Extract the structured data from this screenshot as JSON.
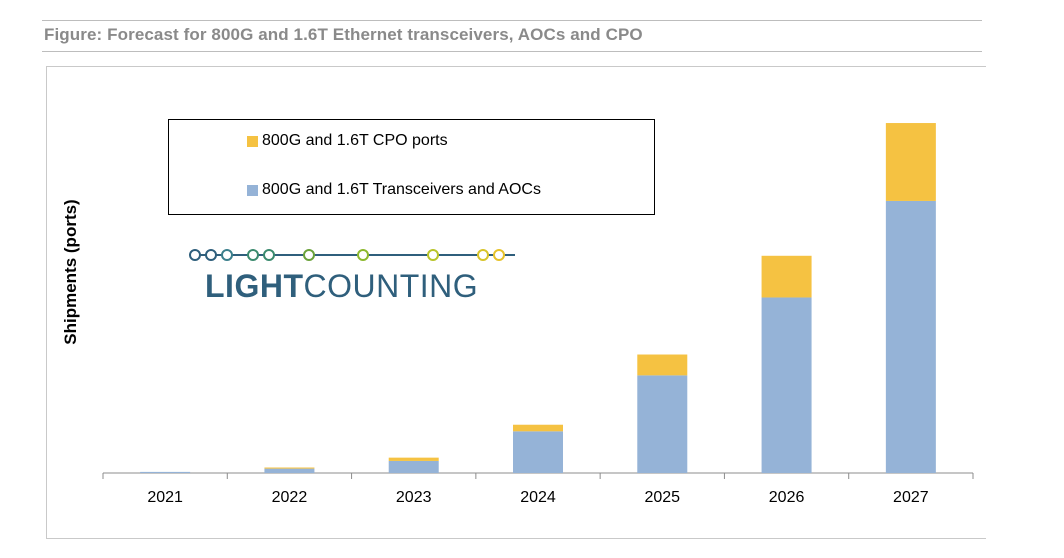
{
  "figure_title": "Figure: Forecast for 800G and 1.6T Ethernet transceivers, AOCs and CPO",
  "logo": {
    "text_bold": "LIGHT",
    "text_regular": "COUNTING"
  },
  "colors": {
    "transceivers": "#95b3d7",
    "cpo": "#f5c242",
    "logo_text": "#2f5f7c"
  },
  "chart_data": {
    "type": "bar",
    "stacked": true,
    "title": "",
    "xlabel": "",
    "ylabel": "Shipments (ports)",
    "categories": [
      "2021",
      "2022",
      "2023",
      "2024",
      "2025",
      "2026",
      "2027"
    ],
    "series": [
      {
        "name": "800G and 1.6T Transceivers and AOCs",
        "values": [
          1,
          4,
          11,
          38,
          89,
          160,
          248
        ]
      },
      {
        "name": "800G and 1.6T CPO ports",
        "values": [
          0,
          1,
          3,
          6,
          19,
          38,
          71
        ]
      }
    ],
    "ylim": [
      0,
      340
    ],
    "legend": "top-left",
    "grid": false
  }
}
